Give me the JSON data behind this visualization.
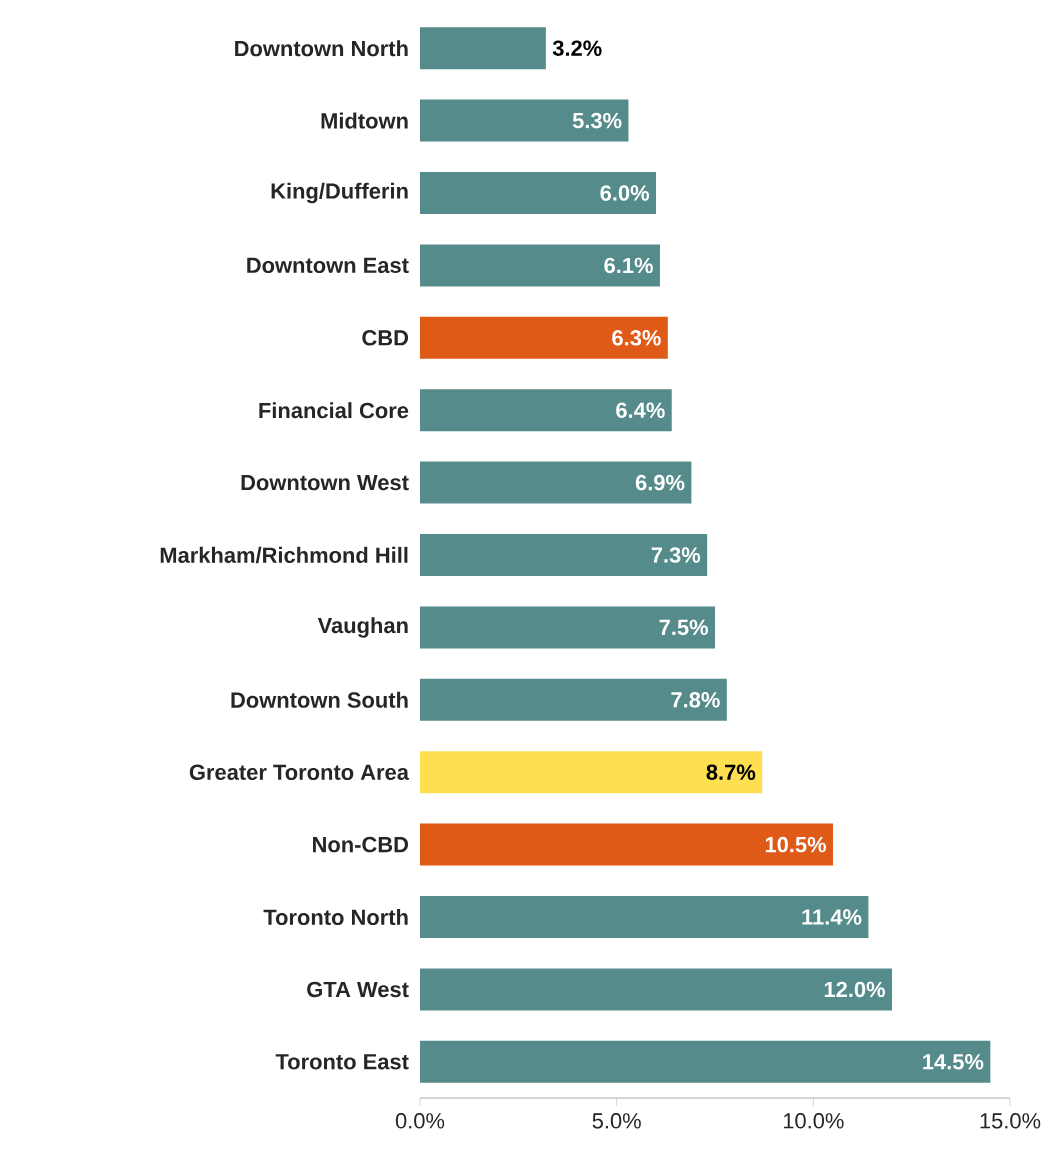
{
  "chart_data": {
    "type": "bar",
    "orientation": "horizontal",
    "categories": [
      "Downtown North",
      "Midtown",
      "King/Dufferin",
      "Downtown East",
      "CBD",
      "Financial Core",
      "Downtown West",
      "Markham/Richmond Hill",
      "Vaughan",
      "Downtown South",
      "Greater Toronto Area",
      "Non-CBD",
      "Toronto North",
      "GTA West",
      "Toronto East"
    ],
    "values": [
      3.2,
      5.3,
      6.0,
      6.1,
      6.3,
      6.4,
      6.9,
      7.3,
      7.5,
      7.8,
      8.7,
      10.5,
      11.4,
      12.0,
      14.5
    ],
    "colors": [
      "#558b8a",
      "#558b8a",
      "#558b8a",
      "#558b8a",
      "#e05a17",
      "#558b8a",
      "#558b8a",
      "#558b8a",
      "#558b8a",
      "#558b8a",
      "#fddf4f",
      "#e05a17",
      "#558b8a",
      "#558b8a",
      "#558b8a"
    ],
    "value_labels": [
      "3.2%",
      "5.3%",
      "6.0%",
      "6.1%",
      "6.3%",
      "6.4%",
      "6.9%",
      "7.3%",
      "7.5%",
      "7.8%",
      "8.7%",
      "10.5%",
      "11.4%",
      "12.0%",
      "14.5%"
    ],
    "xlim": [
      0,
      15
    ],
    "xticks": [
      {
        "value": 0,
        "label": "0.0%"
      },
      {
        "value": 5,
        "label": "5.0%"
      },
      {
        "value": 10,
        "label": "10.0%"
      },
      {
        "value": 15,
        "label": "15.0%"
      }
    ],
    "grid": false
  }
}
